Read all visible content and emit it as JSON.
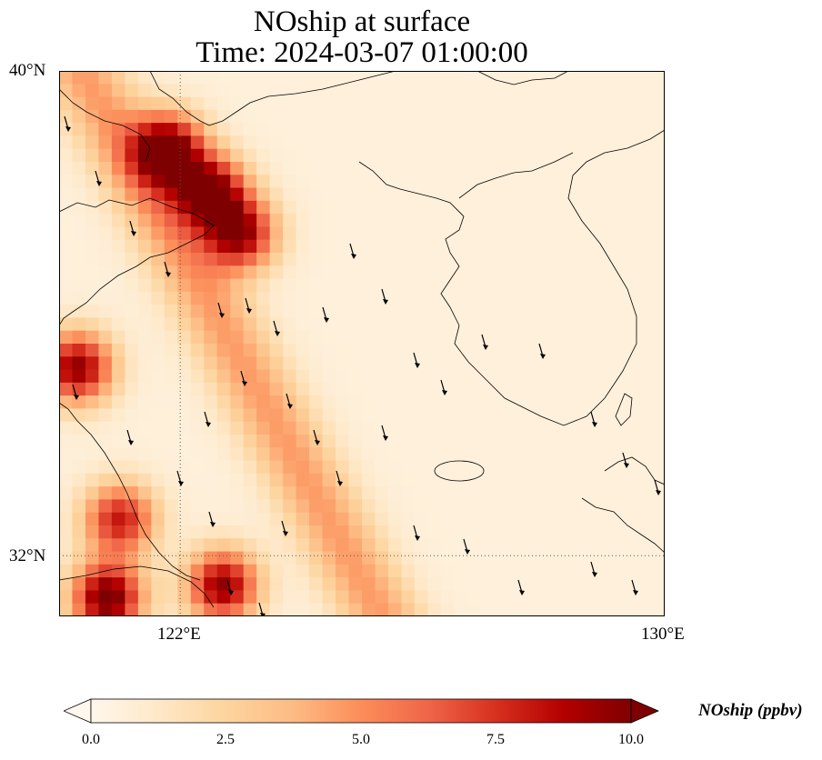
{
  "title": {
    "line1": "NOship at surface",
    "line2": "Time: 2024-03-07 01:00:00"
  },
  "map": {
    "projection": "PlateCarree",
    "lon_range": [
      120,
      130
    ],
    "lat_range": [
      31,
      40
    ],
    "gridlines": {
      "lons": [
        122
      ],
      "lats": [
        32
      ],
      "style": "dotted"
    },
    "xticks": [
      {
        "lon": 122,
        "label": "122°E"
      },
      {
        "lon": 130,
        "label": "130°E"
      }
    ],
    "yticks": [
      {
        "lat": 40,
        "label": "40°N"
      },
      {
        "lat": 32,
        "label": "32°N"
      }
    ],
    "features": [
      "coastlines",
      "borders"
    ],
    "overlay": "wind-vectors"
  },
  "colorbar": {
    "label": "NOship (ppbv)",
    "cmap": "OrRd",
    "vmin": 0,
    "vmax": 10,
    "extend": "both",
    "orientation": "horizontal",
    "ticks": [
      {
        "value": 0,
        "label": "0.0"
      },
      {
        "value": 2.5,
        "label": "2.5"
      },
      {
        "value": 5,
        "label": "5.0"
      },
      {
        "value": 7.5,
        "label": "7.5"
      },
      {
        "value": 10,
        "label": "10.0"
      }
    ],
    "colors": [
      "#fff7ec",
      "#fee8c8",
      "#fdd49e",
      "#fdbb84",
      "#fc8d59",
      "#ef6548",
      "#d7301f",
      "#b30000",
      "#7f0000"
    ]
  },
  "field": {
    "description_hot_spots": [
      {
        "lon": 121.8,
        "lat": 38.7,
        "value": 10
      },
      {
        "lon": 122.5,
        "lat": 38.0,
        "value": 9.5
      },
      {
        "lon": 123.0,
        "lat": 37.3,
        "value": 8.5
      },
      {
        "lon": 120.3,
        "lat": 35.1,
        "value": 9
      },
      {
        "lon": 121.0,
        "lat": 32.6,
        "value": 7.5
      },
      {
        "lon": 120.8,
        "lat": 31.3,
        "value": 10
      },
      {
        "lon": 122.7,
        "lat": 31.5,
        "value": 9
      }
    ]
  }
}
